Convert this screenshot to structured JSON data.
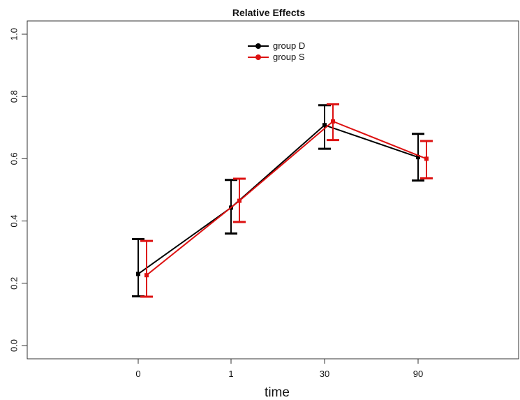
{
  "chart_data": {
    "type": "line",
    "title": "Relative Effects",
    "xlabel": "time",
    "ylabel": "",
    "categories": [
      "0",
      "1",
      "30",
      "90"
    ],
    "ylim": [
      0.0,
      1.0
    ],
    "yticks": [
      "0.0",
      "0.2",
      "0.4",
      "0.6",
      "0.8",
      "1.0"
    ],
    "legend_position": "top-center",
    "grid": false,
    "series": [
      {
        "name": "group D",
        "color": "#000000",
        "values": [
          0.23,
          0.443,
          0.708,
          0.605
        ],
        "lower": [
          0.158,
          0.36,
          0.632,
          0.53
        ],
        "upper": [
          0.342,
          0.532,
          0.772,
          0.68
        ]
      },
      {
        "name": "group S",
        "color": "#dd1111",
        "values": [
          0.226,
          0.465,
          0.72,
          0.6
        ],
        "lower": [
          0.157,
          0.397,
          0.66,
          0.537
        ],
        "upper": [
          0.336,
          0.536,
          0.775,
          0.657
        ]
      }
    ]
  }
}
